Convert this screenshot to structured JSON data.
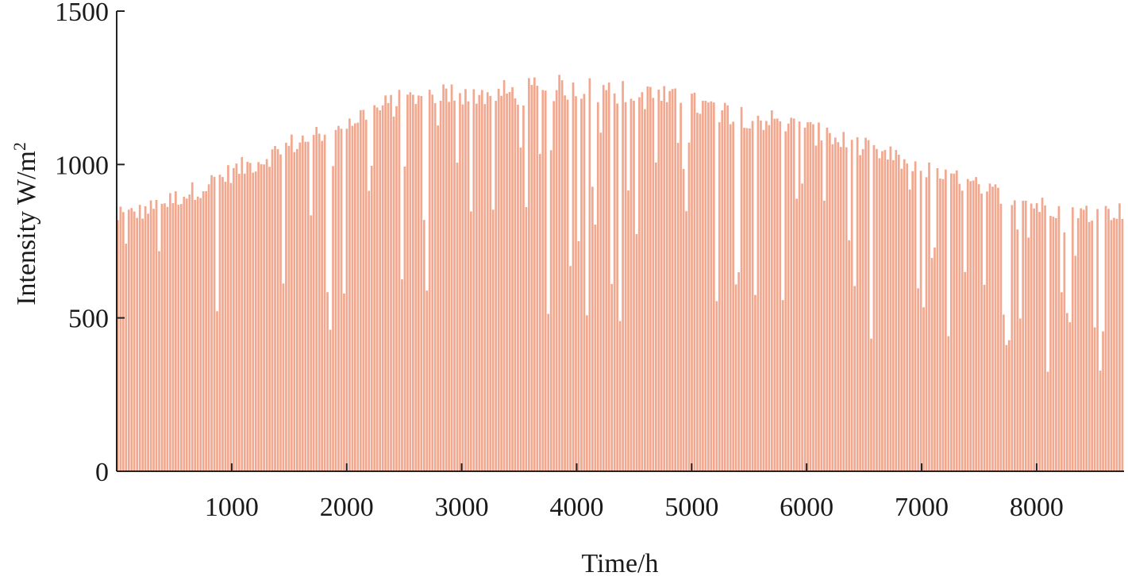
{
  "chart_data": {
    "type": "area",
    "title": "",
    "xlabel": "Time/h",
    "ylabel": "Intensity W/m",
    "ylabel_superscript": "2",
    "xlim": [
      0,
      8760
    ],
    "ylim": [
      0,
      1500
    ],
    "x_ticks": [
      1000,
      2000,
      3000,
      4000,
      5000,
      6000,
      7000,
      8000
    ],
    "y_ticks": [
      0,
      500,
      1000,
      1500
    ],
    "grid": false,
    "legend": "none",
    "color": "#f2a88f",
    "series": [
      {
        "daily_peak_envelope": {
          "x": [
            0,
            250,
            500,
            750,
            1000,
            1250,
            1500,
            1750,
            2000,
            2250,
            2500,
            2750,
            3000,
            3250,
            3500,
            3750,
            4000,
            4250,
            4500,
            4750,
            5000,
            5250,
            5500,
            5750,
            6000,
            6250,
            6500,
            6750,
            7000,
            7250,
            7500,
            7750,
            8000,
            8250,
            8500,
            8760
          ],
          "y": [
            860,
            880,
            920,
            960,
            1010,
            1050,
            1100,
            1140,
            1180,
            1220,
            1250,
            1270,
            1280,
            1275,
            1280,
            1290,
            1300,
            1290,
            1270,
            1260,
            1240,
            1220,
            1200,
            1180,
            1150,
            1120,
            1090,
            1060,
            1020,
            990,
            960,
            930,
            900,
            880,
            870,
            880
          ]
        }
      }
    ],
    "annotations": []
  }
}
